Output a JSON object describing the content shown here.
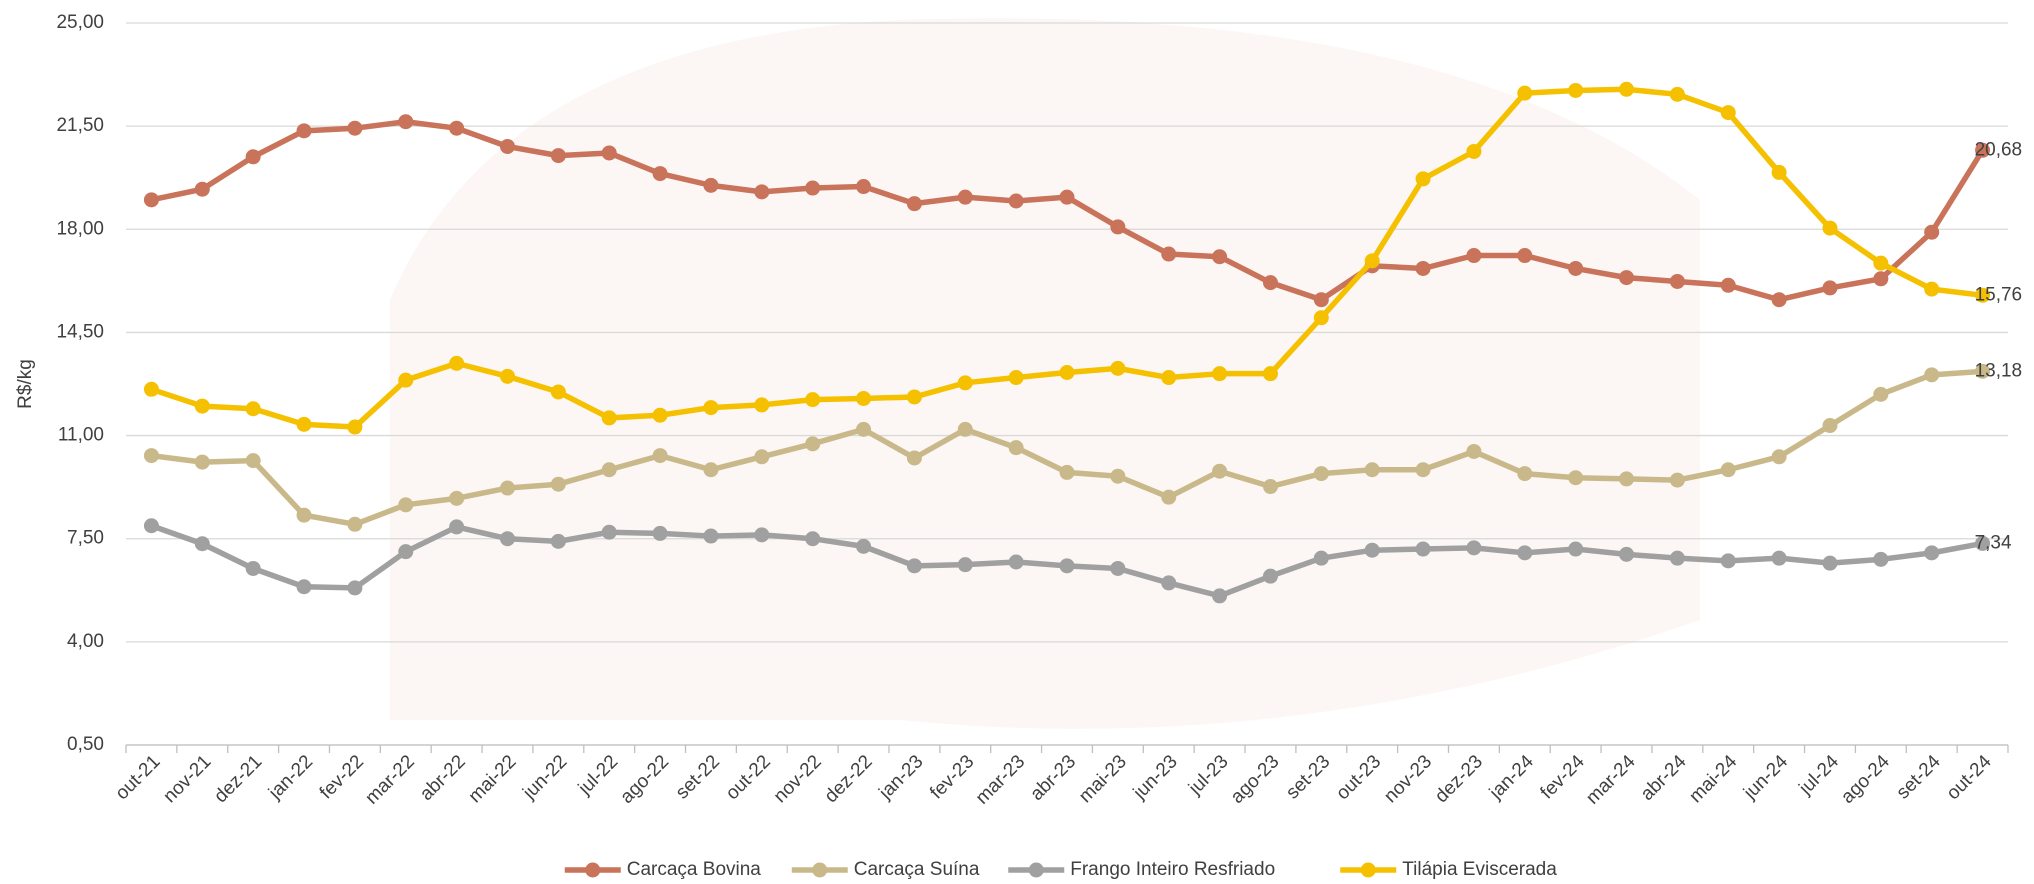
{
  "chart_data": {
    "type": "line",
    "y_label": "R$/kg",
    "categories": [
      "out-21",
      "nov-21",
      "dez-21",
      "jan-22",
      "fev-22",
      "mar-22",
      "abr-22",
      "mai-22",
      "jun-22",
      "jul-22",
      "ago-22",
      "set-22",
      "out-22",
      "nov-22",
      "dez-22",
      "jan-23",
      "fev-23",
      "mar-23",
      "abr-23",
      "mai-23",
      "jun-23",
      "jul-23",
      "ago-23",
      "set-23",
      "out-23",
      "nov-23",
      "dez-23",
      "jan-24",
      "fev-24",
      "mar-24",
      "abr-24",
      "mai-24",
      "jun-24",
      "jul-24",
      "ago-24",
      "set-24",
      "out-24"
    ],
    "series": [
      {
        "name": "Carcaça Bovina",
        "color": "#c8735a",
        "values": [
          19.0,
          19.36,
          20.46,
          21.34,
          21.43,
          21.65,
          21.43,
          20.81,
          20.5,
          20.59,
          19.89,
          19.49,
          19.27,
          19.4,
          19.45,
          18.87,
          19.09,
          18.96,
          19.09,
          18.08,
          17.16,
          17.07,
          16.19,
          15.61,
          16.76,
          16.67,
          17.11,
          17.11,
          16.67,
          16.36,
          16.23,
          16.1,
          15.61,
          16.01,
          16.32,
          17.9,
          20.68
        ],
        "value_labels": [
          null,
          null,
          null,
          null,
          null,
          null,
          null,
          null,
          null,
          null,
          null,
          null,
          null,
          null,
          null,
          null,
          null,
          null,
          null,
          null,
          null,
          null,
          null,
          null,
          null,
          null,
          null,
          null,
          null,
          null,
          null,
          null,
          null,
          null,
          null,
          null,
          "20,68"
        ]
      },
      {
        "name": "Carcaça Suína",
        "color": "#c9b98a",
        "values": [
          10.32,
          10.1,
          10.15,
          8.3,
          7.99,
          8.65,
          8.87,
          9.22,
          9.35,
          9.84,
          10.32,
          9.84,
          10.28,
          10.72,
          11.21,
          10.24,
          11.21,
          10.59,
          9.75,
          9.62,
          8.91,
          9.79,
          9.27,
          9.71,
          9.84,
          9.84,
          10.46,
          9.71,
          9.57,
          9.53,
          9.49,
          9.84,
          10.28,
          11.34,
          12.4,
          13.06,
          13.18
        ],
        "value_labels": [
          null,
          null,
          null,
          null,
          null,
          null,
          null,
          null,
          null,
          null,
          null,
          null,
          null,
          null,
          null,
          null,
          null,
          null,
          null,
          null,
          null,
          null,
          null,
          null,
          null,
          null,
          null,
          null,
          null,
          null,
          null,
          null,
          null,
          null,
          null,
          null,
          "13,18"
        ]
      },
      {
        "name": "Frango Inteiro Resfriado",
        "color": "#a0a0a0",
        "values": [
          7.94,
          7.33,
          6.49,
          5.87,
          5.83,
          7.06,
          7.9,
          7.5,
          7.41,
          7.72,
          7.68,
          7.59,
          7.63,
          7.5,
          7.24,
          6.58,
          6.62,
          6.71,
          6.58,
          6.49,
          6.0,
          5.56,
          6.23,
          6.84,
          7.11,
          7.15,
          7.19,
          7.02,
          7.15,
          6.97,
          6.84,
          6.75,
          6.84,
          6.67,
          6.8,
          7.02,
          7.34
        ],
        "value_labels": [
          null,
          null,
          null,
          null,
          null,
          null,
          null,
          null,
          null,
          null,
          null,
          null,
          null,
          null,
          null,
          null,
          null,
          null,
          null,
          null,
          null,
          null,
          null,
          null,
          null,
          null,
          null,
          null,
          null,
          null,
          null,
          null,
          null,
          null,
          null,
          null,
          "7,34"
        ]
      },
      {
        "name": "Tilápia Eviscerada",
        "color": "#f5c000",
        "values": [
          12.57,
          12.0,
          11.91,
          11.38,
          11.29,
          12.88,
          13.45,
          13.01,
          12.48,
          11.6,
          11.69,
          11.95,
          12.04,
          12.22,
          12.26,
          12.31,
          12.79,
          12.97,
          13.14,
          13.28,
          12.97,
          13.1,
          13.1,
          15.0,
          16.93,
          19.71,
          20.64,
          22.62,
          22.71,
          22.75,
          22.58,
          21.96,
          19.93,
          18.04,
          16.85,
          15.97,
          15.76
        ],
        "value_labels": [
          null,
          null,
          null,
          null,
          null,
          null,
          null,
          null,
          null,
          null,
          null,
          null,
          null,
          null,
          null,
          null,
          null,
          null,
          null,
          null,
          null,
          null,
          null,
          null,
          null,
          null,
          null,
          null,
          null,
          null,
          null,
          null,
          null,
          null,
          null,
          null,
          "15,76"
        ]
      }
    ],
    "ylim": [
      0.5,
      25
    ],
    "yticks": [
      {
        "value": 0.5,
        "label": "0,50"
      },
      {
        "value": 4,
        "label": "4,00"
      },
      {
        "value": 7.5,
        "label": "7,50"
      },
      {
        "value": 11,
        "label": "11,00"
      },
      {
        "value": 14.5,
        "label": "14,50"
      },
      {
        "value": 18,
        "label": "18,00"
      },
      {
        "value": 21.5,
        "label": "21,50"
      },
      {
        "value": 25,
        "label": "25,00"
      }
    ],
    "grid": true,
    "legend": "bottom"
  }
}
